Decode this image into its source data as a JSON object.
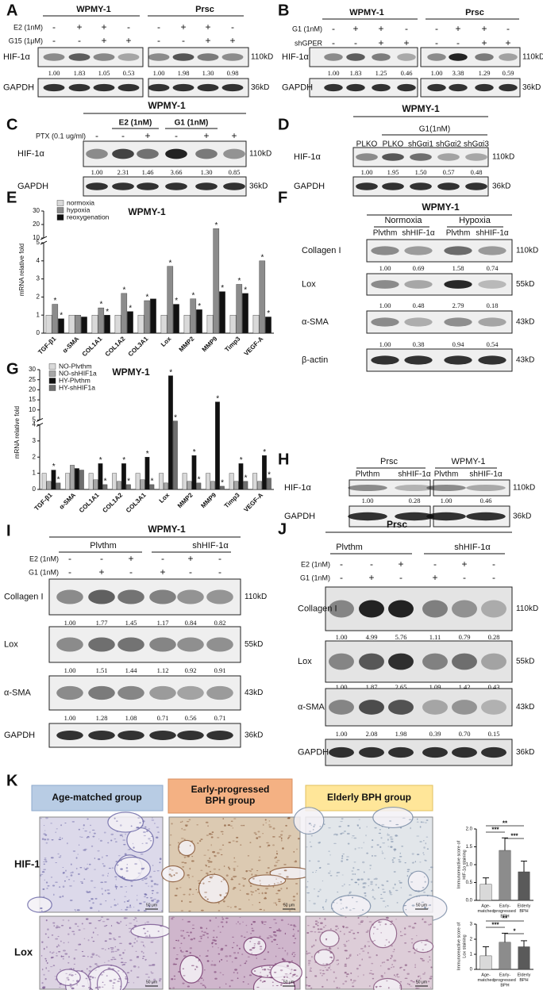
{
  "blots": [
    {
      "letter": "A",
      "groups": [
        "WPMY-1",
        "Prsc"
      ],
      "treatments": [
        {
          "label": "E2 (1nM)",
          "signs": [
            "-",
            "+",
            "+",
            "-",
            "-",
            "+",
            "+",
            "-"
          ]
        },
        {
          "label": "G15 (1μM)",
          "signs": [
            "-",
            "-",
            "+",
            "+",
            "-",
            "-",
            "+",
            "+"
          ]
        }
      ],
      "rows": [
        {
          "protein": "HIF-1α",
          "size": "110kD",
          "quant": [
            "1.00",
            "1.83",
            "1.05",
            "0.53",
            "1.00",
            "1.98",
            "1.30",
            "0.98"
          ]
        },
        {
          "protein": "GAPDH",
          "size": "36kD"
        }
      ]
    },
    {
      "letter": "B",
      "groups": [
        "WPMY-1",
        "Prsc"
      ],
      "treatments": [
        {
          "label": "G1 (1nM)",
          "signs": [
            "-",
            "+",
            "+",
            "-",
            "-",
            "+",
            "+",
            "-"
          ]
        },
        {
          "label": "shGPER",
          "signs": [
            "-",
            "-",
            "+",
            "+",
            "-",
            "-",
            "+",
            "+"
          ]
        }
      ],
      "rows": [
        {
          "protein": "HIF-1α",
          "size": "110kD",
          "quant": [
            "1.00",
            "1.83",
            "1.25",
            "0.46",
            "1.00",
            "3.38",
            "1.29",
            "0.59"
          ]
        },
        {
          "protein": "GAPDH",
          "size": "36kD"
        }
      ]
    },
    {
      "letter": "C",
      "title": "WPMY-1",
      "subgroups": [
        "E2 (1nM)",
        "G1 (1nM)"
      ],
      "treatments": [
        {
          "label": "PTX (0.1 ug/ml)",
          "signs": [
            "-",
            "-",
            "+",
            "-",
            "+",
            "+"
          ]
        }
      ],
      "rows": [
        {
          "protein": "HIF-1α",
          "size": "110kD",
          "quant": [
            "1.00",
            "2.31",
            "1.46",
            "3.66",
            "1.30",
            "0.85"
          ]
        },
        {
          "protein": "GAPDH",
          "size": "36kD"
        }
      ]
    },
    {
      "letter": "D",
      "title": "WPMY-1",
      "subgroups": [
        "G1(1nM)"
      ],
      "columns": [
        "PLKO",
        "PLKO",
        "shGαi1",
        "shGαi2",
        "shGαi3"
      ],
      "rows": [
        {
          "protein": "HIF-1α",
          "size": "110kD",
          "quant": [
            "1.00",
            "1.95",
            "1.50",
            "0.57",
            "0.48"
          ]
        },
        {
          "protein": "GAPDH",
          "size": "36kD"
        }
      ]
    },
    {
      "letter": "F",
      "title": "WPMY-1",
      "groups": [
        "Normoxia",
        "Hypoxia"
      ],
      "columns": [
        "Plvthm",
        "shHIF-1α",
        "Plvthm",
        "shHIF-1α"
      ],
      "rows": [
        {
          "protein": "Collagen I",
          "size": "110kD",
          "quant": [
            "1.00",
            "0.69",
            "1.58",
            "0.74"
          ]
        },
        {
          "protein": "Lox",
          "size": "55kD",
          "quant": [
            "1.00",
            "0.48",
            "2.79",
            "0.18"
          ]
        },
        {
          "protein": "α-SMA",
          "size": "43kD",
          "quant": [
            "1.00",
            "0.38",
            "0.94",
            "0.54"
          ]
        },
        {
          "protein": "β-actin",
          "size": "43kD"
        }
      ]
    },
    {
      "letter": "H",
      "groups": [
        "Prsc",
        "WPMY-1"
      ],
      "columns": [
        "Plvthm",
        "shHIF-1α",
        "Plvthm",
        "shHIF-1α"
      ],
      "rows": [
        {
          "protein": "HIF-1α",
          "size": "110kD",
          "quant": [
            "1.00",
            "0.28",
            "1.00",
            "0.46"
          ]
        },
        {
          "protein": "GAPDH",
          "size": "36kD"
        }
      ]
    },
    {
      "letter": "I",
      "title": "WPMY-1",
      "groups": [
        "Plvthm",
        "shHIF-1α"
      ],
      "treatments": [
        {
          "label": "E2 (1nM)",
          "signs": [
            "-",
            "-",
            "+",
            "-",
            "+",
            "-"
          ]
        },
        {
          "label": "G1 (1nM)",
          "signs": [
            "-",
            "+",
            "-",
            "+",
            "-",
            "-"
          ]
        }
      ],
      "rows": [
        {
          "protein": "Collagen I",
          "size": "110kD",
          "quant": [
            "1.00",
            "1.77",
            "1.45",
            "1.17",
            "0.84",
            "0.82"
          ]
        },
        {
          "protein": "Lox",
          "size": "55kD",
          "quant": [
            "1.00",
            "1.51",
            "1.44",
            "1.12",
            "0.92",
            "0.91"
          ]
        },
        {
          "protein": "α-SMA",
          "size": "43kD",
          "quant": [
            "1.00",
            "1.28",
            "1.08",
            "0.71",
            "0.56",
            "0.71"
          ]
        },
        {
          "protein": "GAPDH",
          "size": "36kD"
        }
      ]
    },
    {
      "letter": "J",
      "title": "Prsc",
      "groups": [
        "Plvthm",
        "shHIF-1α"
      ],
      "treatments": [
        {
          "label": "E2 (1nM)",
          "signs": [
            "-",
            "-",
            "+",
            "-",
            "+",
            "-"
          ]
        },
        {
          "label": "G1 (1nM)",
          "signs": [
            "-",
            "+",
            "-",
            "+",
            "-",
            "-"
          ]
        }
      ],
      "rows": [
        {
          "protein": "Collagen I",
          "size": "110kD",
          "quant": [
            "1.00",
            "4.99",
            "5.76",
            "1.11",
            "0.79",
            "0.28"
          ]
        },
        {
          "protein": "Lox",
          "size": "55kD",
          "quant": [
            "1.00",
            "1.87",
            "2.65",
            "1.09",
            "1.42",
            "0.43"
          ]
        },
        {
          "protein": "α-SMA",
          "size": "43kD",
          "quant": [
            "1.00",
            "2.08",
            "1.98",
            "0.39",
            "0.70",
            "0.15"
          ]
        },
        {
          "protein": "GAPDH",
          "size": "36kD"
        }
      ]
    }
  ],
  "chart_data": [
    {
      "type": "bar",
      "letter": "E",
      "title": "WPMY-1",
      "y_label": [
        "mRNA relative fold"
      ],
      "legend": "upper-left",
      "categories": [
        "TGF-β1",
        "α-SMA",
        "COL1A1",
        "COL1A2",
        "COL3A1",
        "Lox",
        "MMP2",
        "MMP9",
        "Timp3",
        "VEGF-A"
      ],
      "series": [
        {
          "name": "normoxia",
          "color": "#d9d9d9",
          "values": [
            1,
            1,
            1,
            1,
            1,
            1,
            1,
            1,
            1,
            1
          ]
        },
        {
          "name": "hypoxia",
          "color": "#8c8c8c",
          "values": [
            1.6,
            1.0,
            1.4,
            2.2,
            1.8,
            3.7,
            1.9,
            17,
            2.7,
            4.0
          ],
          "significance": [
            "*",
            null,
            "*",
            "*",
            "*",
            "*",
            "*",
            "*",
            "*",
            "*"
          ]
        },
        {
          "name": "reoxygenation",
          "color": "#111111",
          "values": [
            0.8,
            0.9,
            1.0,
            1.2,
            1.9,
            1.6,
            1.3,
            2.3,
            2.2,
            0.9
          ],
          "significance": [
            "*",
            null,
            "*",
            "*",
            null,
            "*",
            "*",
            "*",
            "*",
            "*"
          ]
        }
      ],
      "ylim": [
        0,
        30
      ],
      "yticks": [
        0,
        1,
        2,
        3,
        4,
        5,
        10,
        20,
        30
      ],
      "axis_break": [
        5,
        10
      ]
    },
    {
      "type": "bar",
      "letter": "G",
      "title": "WPMY-1",
      "y_label": [
        "mRNA relative fold"
      ],
      "legend": "upper-left",
      "categories": [
        "TGF-β1",
        "α-SMA",
        "COL1A1",
        "COL1A2",
        "COL3A1",
        "Lox",
        "MMP2",
        "MMP9",
        "Timp3",
        "VEGF-A"
      ],
      "series": [
        {
          "name": "NO-Plvthm",
          "color": "#d9d9d9",
          "values": [
            1,
            1,
            1,
            1,
            1,
            1,
            1,
            1,
            1,
            1
          ]
        },
        {
          "name": "NO-shHIF1a",
          "color": "#a6a6a6",
          "values": [
            0.5,
            1.5,
            0.6,
            0.5,
            0.6,
            0.4,
            0.5,
            0.5,
            0.5,
            0.5
          ]
        },
        {
          "name": "HY-Plvthm",
          "color": "#111111",
          "values": [
            1.2,
            1.3,
            1.6,
            1.6,
            2.0,
            27,
            2.1,
            14,
            1.6,
            2.1
          ],
          "significance": [
            "*",
            null,
            "*",
            "*",
            "*",
            "*",
            "*",
            "*",
            "*",
            "*"
          ]
        },
        {
          "name": "HY-shHIF1a",
          "color": "#6e6e6e",
          "values": [
            0.4,
            1.2,
            0.3,
            0.3,
            0.3,
            4.5,
            0.4,
            0.2,
            0.5,
            0.7
          ],
          "significance": [
            "*",
            null,
            "*",
            "*",
            "*",
            "*",
            "*",
            "*",
            "*",
            "*"
          ]
        }
      ],
      "ylim": [
        0,
        30
      ],
      "yticks": [
        0,
        1,
        2,
        3,
        4,
        5,
        10,
        15,
        20,
        25,
        30
      ],
      "axis_break": [
        4,
        5
      ]
    },
    {
      "type": "bar",
      "y_label": [
        "Immunoreactive score of",
        "HIF-1α staining"
      ],
      "categories": [
        [
          "Age-",
          "matched"
        ],
        [
          "Early-",
          "progressed",
          "BPH"
        ],
        [
          "Elderly",
          "BPH"
        ]
      ],
      "colors": [
        "#d9d9d9",
        "#8c8c8c",
        "#5a5a5a"
      ],
      "values": [
        0.45,
        1.4,
        0.8
      ],
      "errors": [
        0.18,
        0.35,
        0.3
      ],
      "comparisons": [
        {
          "pair": [
            0,
            2
          ],
          "label": "**"
        },
        {
          "pair": [
            0,
            1
          ],
          "label": "***"
        },
        {
          "pair": [
            1,
            2
          ],
          "label": "***"
        }
      ],
      "ylim": [
        0,
        2
      ],
      "yticks": [
        {
          "value": 0,
          "label": "0.0"
        },
        0.5,
        {
          "value": 1,
          "label": "1.0"
        },
        1.5,
        {
          "value": 2,
          "label": "2.0"
        }
      ]
    },
    {
      "type": "bar",
      "y_label": [
        "Immunoreactive score of",
        "Lox staining"
      ],
      "categories": [
        [
          "Age-",
          "matched"
        ],
        [
          "Early-",
          "progressed",
          "BPH"
        ],
        [
          "Elderly",
          "BPH"
        ]
      ],
      "colors": [
        "#d9d9d9",
        "#8c8c8c",
        "#5a5a5a"
      ],
      "values": [
        0.9,
        1.8,
        1.5
      ],
      "errors": [
        0.6,
        0.6,
        0.4
      ],
      "comparisons": [
        {
          "pair": [
            0,
            2
          ],
          "label": "**"
        },
        {
          "pair": [
            0,
            1
          ],
          "label": "***"
        },
        {
          "pair": [
            1,
            2
          ],
          "label": "*"
        }
      ],
      "ylim": [
        0,
        3
      ],
      "yticks": [
        0,
        1,
        2,
        3
      ]
    }
  ],
  "histology": {
    "letter": "K",
    "groups": [
      [
        "Age-matched group"
      ],
      [
        "Early-progressed",
        "BPH group"
      ],
      [
        "Elderly BPH group"
      ]
    ],
    "rows": [
      "HIF-1α",
      "Lox"
    ],
    "scale_bar": "50 μm"
  }
}
